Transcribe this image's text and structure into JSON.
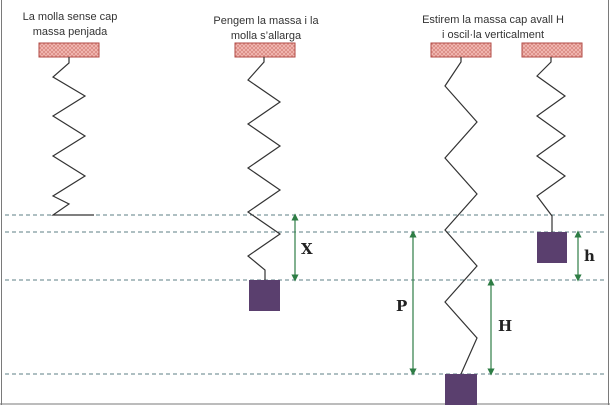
{
  "captions": {
    "panel1": [
      "La molla sense cap",
      "massa penjada"
    ],
    "panel2": [
      "Pengem la massa i la",
      "molla s’allarga"
    ],
    "panel3": [
      "Estirem la massa cap avall H",
      "i oscil·la verticalment"
    ]
  },
  "labels": {
    "x": "X",
    "p": "P",
    "h_upper": "H",
    "h_lower": "h"
  },
  "colors": {
    "ceiling_fill": "#f3b9b3",
    "ceiling_stroke": "#b04a44",
    "mass": "#5a3f6e",
    "spring": "#333333",
    "guide": "#5d7f86",
    "arrow": "#2e7d45",
    "border": "#7a7a7a"
  }
}
